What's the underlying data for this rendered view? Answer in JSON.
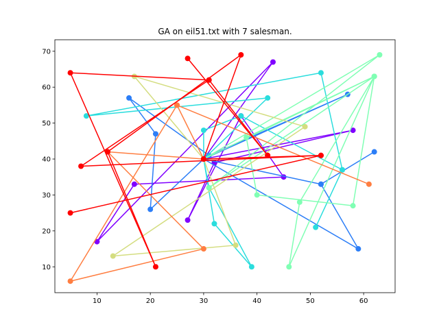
{
  "chart_data": {
    "type": "line",
    "title": "GA on eil51.txt with 7 salesman.",
    "xlabel": "",
    "ylabel": "",
    "xlim": [
      2.1,
      65.9
    ],
    "ylim": [
      2.8,
      73.2
    ],
    "xticks": [
      10,
      20,
      30,
      40,
      50,
      60
    ],
    "yticks": [
      10,
      20,
      30,
      40,
      50,
      60,
      70
    ],
    "grid": false,
    "series": [
      {
        "color": "#8000ff",
        "points": [
          [
            30,
            40
          ],
          [
            43,
            67
          ],
          [
            10,
            17
          ],
          [
            17,
            33
          ],
          [
            45,
            35
          ],
          [
            37,
            52
          ],
          [
            27,
            23
          ],
          [
            32,
            39
          ],
          [
            58,
            48
          ],
          [
            30,
            40
          ]
        ]
      },
      {
        "color": "#2c7ef7",
        "points": [
          [
            30,
            40
          ],
          [
            57,
            58
          ],
          [
            31,
            41
          ],
          [
            16,
            57
          ],
          [
            21,
            47
          ],
          [
            20,
            26
          ],
          [
            30,
            40
          ],
          [
            52,
            33
          ],
          [
            62,
            42
          ],
          [
            52,
            33
          ],
          [
            59,
            15
          ],
          [
            30,
            40
          ]
        ]
      },
      {
        "color": "#2adddd",
        "points": [
          [
            30,
            40
          ],
          [
            42,
            57
          ],
          [
            8,
            52
          ],
          [
            52,
            64
          ],
          [
            56,
            37
          ],
          [
            51,
            21
          ],
          [
            56,
            37
          ],
          [
            37,
            52
          ],
          [
            30,
            48
          ],
          [
            30,
            40
          ],
          [
            31,
            32
          ],
          [
            39,
            10
          ],
          [
            32,
            22
          ],
          [
            30,
            40
          ]
        ]
      },
      {
        "color": "#80ffb4",
        "points": [
          [
            30,
            40
          ],
          [
            63,
            69
          ],
          [
            31,
            32
          ],
          [
            62,
            63
          ],
          [
            58,
            27
          ],
          [
            40,
            30
          ],
          [
            38,
            46
          ],
          [
            62,
            63
          ],
          [
            46,
            10
          ],
          [
            48,
            28
          ],
          [
            62,
            63
          ],
          [
            30,
            40
          ]
        ]
      },
      {
        "color": "#d4dd80",
        "points": [
          [
            30,
            40
          ],
          [
            17,
            63
          ],
          [
            49,
            49
          ],
          [
            13,
            13
          ],
          [
            36,
            16
          ],
          [
            30,
            40
          ]
        ]
      },
      {
        "color": "#ff7e41",
        "points": [
          [
            30,
            40
          ],
          [
            25,
            55
          ],
          [
            61,
            33
          ],
          [
            25,
            55
          ],
          [
            5,
            6
          ],
          [
            30,
            15
          ],
          [
            12,
            42
          ],
          [
            30,
            40
          ]
        ]
      },
      {
        "color": "#ff0000",
        "points": [
          [
            30,
            40
          ],
          [
            37,
            69
          ],
          [
            12,
            42
          ],
          [
            21,
            10
          ],
          [
            5,
            64
          ],
          [
            31,
            62
          ],
          [
            42,
            41
          ],
          [
            27,
            68
          ],
          [
            42,
            41
          ],
          [
            31,
            62
          ],
          [
            7,
            38
          ],
          [
            52,
            41
          ],
          [
            5,
            25
          ],
          [
            52,
            41
          ],
          [
            30,
            40
          ]
        ]
      }
    ]
  }
}
